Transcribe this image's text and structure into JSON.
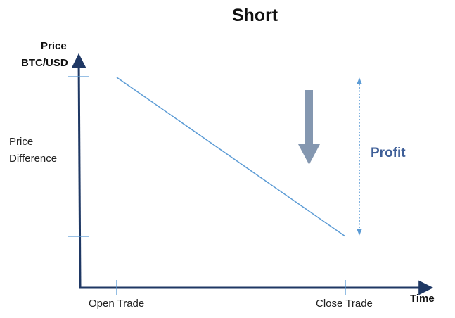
{
  "title": "Short",
  "y_axis": {
    "label_line1": "Price",
    "label_line2": "BTC/USD"
  },
  "x_axis": {
    "label": "Time"
  },
  "annotation": {
    "line1": "Price",
    "line2": "Difference"
  },
  "ticks": {
    "open": "Open Trade",
    "close": "Close Trade"
  },
  "profit_label": "Profit",
  "colors": {
    "axis": "#1f3864",
    "price_line": "#5b9bd5",
    "arrow": "#8497b0",
    "profit": "#3f5f98"
  }
}
